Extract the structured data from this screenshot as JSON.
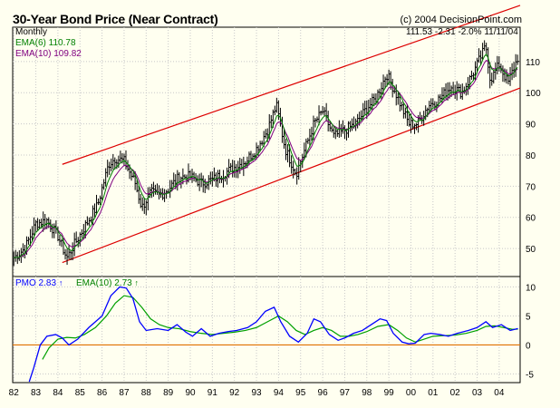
{
  "header": {
    "title": "30-Year Bond Price (Near Contract)",
    "copyright": "(c) 2004 DecisionPoint.com"
  },
  "legend": {
    "period": "Monthly",
    "ema6": "EMA(6) 110.78",
    "ema10": "EMA(10) 109.82",
    "stats": "111.53  -2.31  -2.0%  11/11/04",
    "pmo": "PMO  2.83",
    "pmo_ema": "EMA(10)  2.73",
    "pmo_arrow": "↑",
    "pmo_ema_arrow": "↑"
  },
  "colors": {
    "background": "#fffff0",
    "price_bars": "#000000",
    "ema6": "#008000",
    "ema10": "#800080",
    "channel": "#dd0000",
    "pmo": "#0000ff",
    "pmo_ema": "#00a000",
    "zero_line": "#e07000",
    "grid": "#c8c8c8"
  },
  "chart_data": [
    {
      "type": "ohlc",
      "title": "30-Year Bond Price (Near Contract)",
      "y_axis_side": "right",
      "yticks": [
        50,
        60,
        70,
        80,
        90,
        100,
        110
      ],
      "ylim": [
        41,
        121
      ],
      "xlim": [
        1981.95,
        2004.95
      ],
      "grid": true,
      "x_labels": [
        "82",
        "83",
        "84",
        "85",
        "86",
        "87",
        "88",
        "89",
        "90",
        "91",
        "92",
        "93",
        "94",
        "95",
        "96",
        "97",
        "98",
        "99",
        "00",
        "01",
        "02",
        "03",
        "04"
      ],
      "x_label_years": [
        1982,
        1983,
        1984,
        1985,
        1986,
        1987,
        1988,
        1989,
        1990,
        1991,
        1992,
        1993,
        1994,
        1995,
        1996,
        1997,
        1998,
        1999,
        2000,
        2001,
        2002,
        2003,
        2004
      ],
      "price_path_monthly_close": [
        [
          1982.0,
          47
        ],
        [
          1982.5,
          50
        ],
        [
          1983.0,
          58
        ],
        [
          1983.5,
          59
        ],
        [
          1984.0,
          54
        ],
        [
          1984.4,
          47
        ],
        [
          1984.8,
          52
        ],
        [
          1985.3,
          58
        ],
        [
          1985.8,
          64
        ],
        [
          1986.3,
          77
        ],
        [
          1986.6,
          79
        ],
        [
          1987.0,
          78
        ],
        [
          1987.5,
          71
        ],
        [
          1987.8,
          63
        ],
        [
          1988.2,
          68
        ],
        [
          1988.6,
          67
        ],
        [
          1989.0,
          69
        ],
        [
          1989.5,
          73
        ],
        [
          1990.0,
          73
        ],
        [
          1990.5,
          71
        ],
        [
          1991.0,
          72
        ],
        [
          1991.5,
          74
        ],
        [
          1992.0,
          76
        ],
        [
          1992.5,
          78
        ],
        [
          1993.0,
          82
        ],
        [
          1993.5,
          88
        ],
        [
          1993.9,
          96
        ],
        [
          1994.3,
          82
        ],
        [
          1994.8,
          74
        ],
        [
          1995.2,
          82
        ],
        [
          1995.6,
          90
        ],
        [
          1996.0,
          94
        ],
        [
          1996.5,
          86
        ],
        [
          1997.0,
          88
        ],
        [
          1997.5,
          90
        ],
        [
          1998.0,
          95
        ],
        [
          1998.4,
          98
        ],
        [
          1998.9,
          106
        ],
        [
          1999.3,
          100
        ],
        [
          1999.9,
          90
        ],
        [
          2000.3,
          90
        ],
        [
          2000.8,
          96
        ],
        [
          2001.3,
          98
        ],
        [
          2001.8,
          102
        ],
        [
          2002.3,
          100
        ],
        [
          2002.8,
          106
        ],
        [
          2003.4,
          115
        ],
        [
          2003.6,
          104
        ],
        [
          2004.0,
          109
        ],
        [
          2004.4,
          103
        ],
        [
          2004.85,
          111.5
        ]
      ],
      "series": [
        {
          "name": "Monthly",
          "style": "bars"
        },
        {
          "name": "EMA(6)",
          "value_last": 110.78
        },
        {
          "name": "EMA(10)",
          "value_last": 109.82
        }
      ],
      "channel_lines": [
        {
          "from": [
            1984.2,
            77
          ],
          "to": [
            2004.95,
            128
          ]
        },
        {
          "from": [
            1984.2,
            45.5
          ],
          "to": [
            2004.95,
            101.5
          ]
        }
      ]
    },
    {
      "type": "line",
      "title": "PMO",
      "yticks": [
        -5,
        0,
        5,
        10
      ],
      "ylim": [
        -6.5,
        11.8
      ],
      "x_labels": [
        "82",
        "83",
        "84",
        "85",
        "86",
        "87",
        "88",
        "89",
        "90",
        "91",
        "92",
        "93",
        "94",
        "95",
        "96",
        "97",
        "98",
        "99",
        "00",
        "01",
        "02",
        "03",
        "04"
      ],
      "series": [
        {
          "name": "PMO",
          "values": [
            [
              1982.7,
              -7
            ],
            [
              1982.9,
              -4
            ],
            [
              1983.2,
              0
            ],
            [
              1983.5,
              1.5
            ],
            [
              1983.9,
              1.8
            ],
            [
              1984.2,
              1.2
            ],
            [
              1984.5,
              0
            ],
            [
              1984.9,
              1
            ],
            [
              1985.4,
              3
            ],
            [
              1986.0,
              5
            ],
            [
              1986.4,
              8.5
            ],
            [
              1986.8,
              10
            ],
            [
              1987.1,
              9.8
            ],
            [
              1987.4,
              8
            ],
            [
              1987.7,
              4
            ],
            [
              1988.0,
              2.5
            ],
            [
              1988.5,
              2.8
            ],
            [
              1989.0,
              2.5
            ],
            [
              1989.4,
              3.5
            ],
            [
              1989.8,
              2.2
            ],
            [
              1990.1,
              1.5
            ],
            [
              1990.5,
              2.8
            ],
            [
              1990.9,
              1.5
            ],
            [
              1991.3,
              2
            ],
            [
              1991.7,
              2.3
            ],
            [
              1992.1,
              2.5
            ],
            [
              1992.6,
              3
            ],
            [
              1993.0,
              4
            ],
            [
              1993.4,
              5.8
            ],
            [
              1993.8,
              6.5
            ],
            [
              1994.1,
              4
            ],
            [
              1994.5,
              1.5
            ],
            [
              1994.9,
              0.5
            ],
            [
              1995.3,
              2
            ],
            [
              1995.6,
              4.5
            ],
            [
              1995.9,
              4
            ],
            [
              1996.3,
              1.8
            ],
            [
              1996.7,
              0.8
            ],
            [
              1997.0,
              1.2
            ],
            [
              1997.4,
              2
            ],
            [
              1997.8,
              2.5
            ],
            [
              1998.2,
              3.5
            ],
            [
              1998.6,
              4.5
            ],
            [
              1998.9,
              4.2
            ],
            [
              1999.2,
              2
            ],
            [
              1999.6,
              0.5
            ],
            [
              1999.9,
              0.2
            ],
            [
              2000.2,
              0.3
            ],
            [
              2000.6,
              1.8
            ],
            [
              2000.9,
              2
            ],
            [
              2001.3,
              1.8
            ],
            [
              2001.7,
              1.5
            ],
            [
              2002.1,
              2
            ],
            [
              2002.6,
              2.5
            ],
            [
              2003.0,
              3
            ],
            [
              2003.4,
              4
            ],
            [
              2003.7,
              3
            ],
            [
              2004.1,
              3.5
            ],
            [
              2004.5,
              2.5
            ],
            [
              2004.85,
              2.83
            ]
          ]
        },
        {
          "name": "EMA(10)",
          "values": [
            [
              1983.3,
              -2.5
            ],
            [
              1983.6,
              -0.5
            ],
            [
              1984.0,
              1
            ],
            [
              1984.4,
              1.3
            ],
            [
              1984.8,
              1.2
            ],
            [
              1985.2,
              1.8
            ],
            [
              1985.7,
              3
            ],
            [
              1986.2,
              5
            ],
            [
              1986.6,
              7.2
            ],
            [
              1987.0,
              8.5
            ],
            [
              1987.4,
              8.2
            ],
            [
              1987.8,
              6.5
            ],
            [
              1988.2,
              4.5
            ],
            [
              1988.6,
              3.5
            ],
            [
              1989.0,
              3
            ],
            [
              1989.5,
              2.8
            ],
            [
              1990.0,
              2.3
            ],
            [
              1990.5,
              2
            ],
            [
              1991.0,
              1.8
            ],
            [
              1991.5,
              2
            ],
            [
              1992.0,
              2.2
            ],
            [
              1992.5,
              2.5
            ],
            [
              1993.0,
              3
            ],
            [
              1993.5,
              4
            ],
            [
              1994.0,
              5
            ],
            [
              1994.4,
              4
            ],
            [
              1994.8,
              2.5
            ],
            [
              1995.2,
              1.8
            ],
            [
              1995.6,
              2.5
            ],
            [
              1996.0,
              3
            ],
            [
              1996.4,
              2.5
            ],
            [
              1996.8,
              1.5
            ],
            [
              1997.2,
              1.5
            ],
            [
              1997.6,
              1.8
            ],
            [
              1998.0,
              2.3
            ],
            [
              1998.5,
              3.2
            ],
            [
              1999.0,
              3.5
            ],
            [
              1999.4,
              2.5
            ],
            [
              1999.8,
              1.2
            ],
            [
              2000.2,
              0.5
            ],
            [
              2000.6,
              1
            ],
            [
              2001.0,
              1.5
            ],
            [
              2001.5,
              1.6
            ],
            [
              2002.0,
              1.7
            ],
            [
              2002.5,
              2
            ],
            [
              2003.0,
              2.5
            ],
            [
              2003.4,
              3.2
            ],
            [
              2003.8,
              3.3
            ],
            [
              2004.2,
              3
            ],
            [
              2004.6,
              2.7
            ],
            [
              2004.85,
              2.73
            ]
          ]
        }
      ],
      "zero_line": true
    }
  ]
}
